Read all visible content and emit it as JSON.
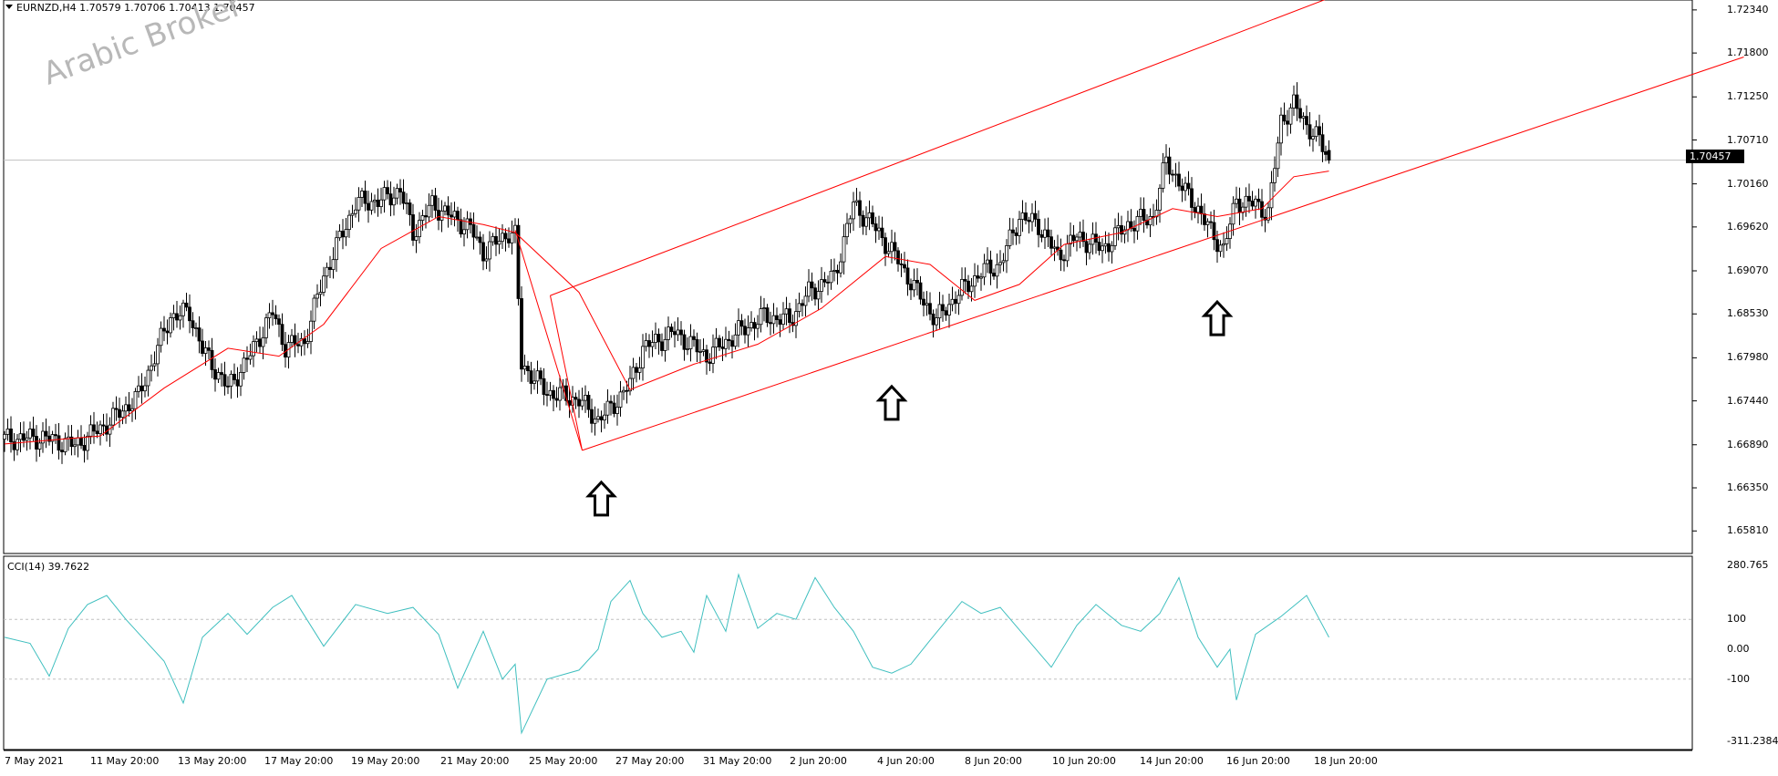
{
  "symbol_header": "EURNZD,H4  1.70579 1.70706 1.70413 1.70457",
  "watermark": "Arabic Broker",
  "current_price": "1.70457",
  "cci_header": "CCI(14) 39.7622",
  "colors": {
    "background": "#ffffff",
    "bull_candle_fill": "#ffffff",
    "bear_candle_fill": "#000000",
    "moving_average": "#ff0000",
    "channel_lines": "#ff0000",
    "cci_line": "#3fbfbf",
    "level_lines": "#c0c0c0",
    "current_price_box": "#000000"
  },
  "icons": [
    "dropdown-triangle-icon",
    "up-arrow-annotation-icon"
  ],
  "chart_data": [
    {
      "type": "candlestick",
      "title": "EURNZD,H4",
      "price_axis_labels": [
        "1.72340",
        "1.71800",
        "1.71250",
        "1.70710",
        "1.70160",
        "1.69620",
        "1.69070",
        "1.68530",
        "1.67980",
        "1.67440",
        "1.66890",
        "1.66350",
        "1.65810"
      ],
      "x_labels": [
        "7 May 2021",
        "11 May 20:00",
        "13 May 20:00",
        "17 May 20:00",
        "19 May 20:00",
        "21 May 20:00",
        "25 May 20:00",
        "27 May 20:00",
        "31 May 20:00",
        "2 Jun 20:00",
        "4 Jun 20:00",
        "8 Jun 20:00",
        "10 Jun 20:00",
        "14 Jun 20:00",
        "16 Jun 20:00",
        "18 Jun 20:00"
      ],
      "ylim": [
        1.6555,
        1.7243
      ],
      "current_price": 1.70457,
      "last_bar": {
        "open": 1.70579,
        "high": 1.70706,
        "low": 1.70413,
        "close": 1.70457
      },
      "close_path": [
        [
          0,
          1.6696
        ],
        [
          12,
          1.6698
        ],
        [
          22,
          1.6688
        ],
        [
          32,
          1.6715
        ],
        [
          42,
          1.675
        ],
        [
          52,
          1.685
        ],
        [
          58,
          1.6855
        ],
        [
          62,
          1.6808
        ],
        [
          70,
          1.676
        ],
        [
          76,
          1.6795
        ],
        [
          84,
          1.6855
        ],
        [
          88,
          1.6812
        ],
        [
          94,
          1.6818
        ],
        [
          100,
          1.69
        ],
        [
          110,
          1.6992
        ],
        [
          118,
          1.6995
        ],
        [
          124,
          1.7008
        ],
        [
          128,
          1.6955
        ],
        [
          134,
          1.699
        ],
        [
          140,
          1.6975
        ],
        [
          146,
          1.696
        ],
        [
          150,
          1.693
        ],
        [
          158,
          1.6955
        ],
        [
          160,
          1.695
        ],
        [
          162,
          1.679
        ],
        [
          170,
          1.6755
        ],
        [
          180,
          1.6745
        ],
        [
          186,
          1.672
        ],
        [
          190,
          1.6735
        ],
        [
          196,
          1.6765
        ],
        [
          200,
          1.681
        ],
        [
          210,
          1.683
        ],
        [
          220,
          1.68
        ],
        [
          230,
          1.683
        ],
        [
          238,
          1.685
        ],
        [
          246,
          1.6845
        ],
        [
          252,
          1.688
        ],
        [
          260,
          1.69
        ],
        [
          266,
          1.699
        ],
        [
          272,
          1.6965
        ],
        [
          280,
          1.692
        ],
        [
          286,
          1.688
        ],
        [
          292,
          1.6845
        ],
        [
          298,
          1.6875
        ],
        [
          306,
          1.6905
        ],
        [
          312,
          1.6915
        ],
        [
          318,
          1.6975
        ],
        [
          324,
          1.6965
        ],
        [
          330,
          1.6925
        ],
        [
          336,
          1.695
        ],
        [
          344,
          1.6935
        ],
        [
          352,
          1.6965
        ],
        [
          360,
          1.6975
        ],
        [
          364,
          1.7045
        ],
        [
          370,
          1.7005
        ],
        [
          374,
          1.6985
        ],
        [
          378,
          1.6955
        ],
        [
          382,
          1.6935
        ],
        [
          386,
          1.6995
        ],
        [
          392,
          1.699
        ],
        [
          396,
          1.698
        ],
        [
          400,
          1.7095
        ],
        [
          404,
          1.7115
        ],
        [
          408,
          1.709
        ],
        [
          412,
          1.707
        ],
        [
          415,
          1.7046
        ]
      ],
      "moving_average": {
        "color": "#ff0000",
        "values": [
          [
            0,
            1.669
          ],
          [
            30,
            1.67
          ],
          [
            50,
            1.676
          ],
          [
            70,
            1.681
          ],
          [
            86,
            1.68
          ],
          [
            100,
            1.684
          ],
          [
            118,
            1.6935
          ],
          [
            136,
            1.6975
          ],
          [
            150,
            1.6965
          ],
          [
            160,
            1.6955
          ],
          [
            180,
            1.688
          ],
          [
            196,
            1.6758
          ],
          [
            216,
            1.679
          ],
          [
            236,
            1.6815
          ],
          [
            256,
            1.686
          ],
          [
            276,
            1.6925
          ],
          [
            290,
            1.6915
          ],
          [
            304,
            1.687
          ],
          [
            318,
            1.689
          ],
          [
            332,
            1.694
          ],
          [
            350,
            1.6955
          ],
          [
            366,
            1.6985
          ],
          [
            380,
            1.6975
          ],
          [
            394,
            1.6985
          ],
          [
            404,
            1.7025
          ],
          [
            415,
            1.7032
          ]
        ]
      },
      "channel": {
        "color": "#ff0000",
        "upper": [
          [
            171,
            1.6876
          ],
          [
            440,
            1.7287
          ]
        ],
        "lower": [
          [
            181,
            1.6682
          ],
          [
            545,
            1.7175
          ]
        ],
        "connector": [
          [
            160,
            1.6958
          ],
          [
            181,
            1.6682
          ],
          [
            171,
            1.6876
          ]
        ]
      },
      "annotations": [
        {
          "type": "up-arrow",
          "x": 187,
          "y": 1.6642
        },
        {
          "type": "up-arrow",
          "x": 278,
          "y": 1.6762
        },
        {
          "type": "up-arrow",
          "x": 380,
          "y": 1.6868
        }
      ]
    },
    {
      "type": "line",
      "title": "CCI(14) 39.7622",
      "y_labels": [
        "280.765",
        "100",
        "0.00",
        "-100",
        "-311.2384"
      ],
      "ylim": [
        -311.2384,
        280.765
      ],
      "levels": [
        100,
        -100
      ],
      "values": [
        [
          0,
          40
        ],
        [
          8,
          20
        ],
        [
          14,
          -90
        ],
        [
          20,
          70
        ],
        [
          26,
          150
        ],
        [
          32,
          180
        ],
        [
          38,
          100
        ],
        [
          44,
          30
        ],
        [
          50,
          -40
        ],
        [
          56,
          -180
        ],
        [
          62,
          40
        ],
        [
          70,
          120
        ],
        [
          76,
          50
        ],
        [
          84,
          140
        ],
        [
          90,
          180
        ],
        [
          100,
          10
        ],
        [
          110,
          150
        ],
        [
          120,
          120
        ],
        [
          128,
          140
        ],
        [
          136,
          50
        ],
        [
          142,
          -130
        ],
        [
          150,
          60
        ],
        [
          156,
          -100
        ],
        [
          160,
          -50
        ],
        [
          162,
          -280
        ],
        [
          170,
          -100
        ],
        [
          180,
          -70
        ],
        [
          186,
          0
        ],
        [
          190,
          160
        ],
        [
          196,
          230
        ],
        [
          200,
          120
        ],
        [
          206,
          40
        ],
        [
          212,
          60
        ],
        [
          216,
          -10
        ],
        [
          220,
          180
        ],
        [
          226,
          60
        ],
        [
          230,
          250
        ],
        [
          236,
          70
        ],
        [
          242,
          120
        ],
        [
          248,
          100
        ],
        [
          254,
          240
        ],
        [
          260,
          140
        ],
        [
          266,
          60
        ],
        [
          272,
          -60
        ],
        [
          278,
          -80
        ],
        [
          284,
          -50
        ],
        [
          290,
          30
        ],
        [
          300,
          160
        ],
        [
          306,
          120
        ],
        [
          312,
          140
        ],
        [
          320,
          40
        ],
        [
          328,
          -60
        ],
        [
          336,
          80
        ],
        [
          342,
          150
        ],
        [
          350,
          80
        ],
        [
          356,
          60
        ],
        [
          362,
          120
        ],
        [
          368,
          240
        ],
        [
          374,
          40
        ],
        [
          380,
          -60
        ],
        [
          384,
          0
        ],
        [
          386,
          -170
        ],
        [
          392,
          50
        ],
        [
          400,
          110
        ],
        [
          408,
          180
        ],
        [
          412,
          100
        ],
        [
          415,
          40
        ]
      ]
    }
  ]
}
